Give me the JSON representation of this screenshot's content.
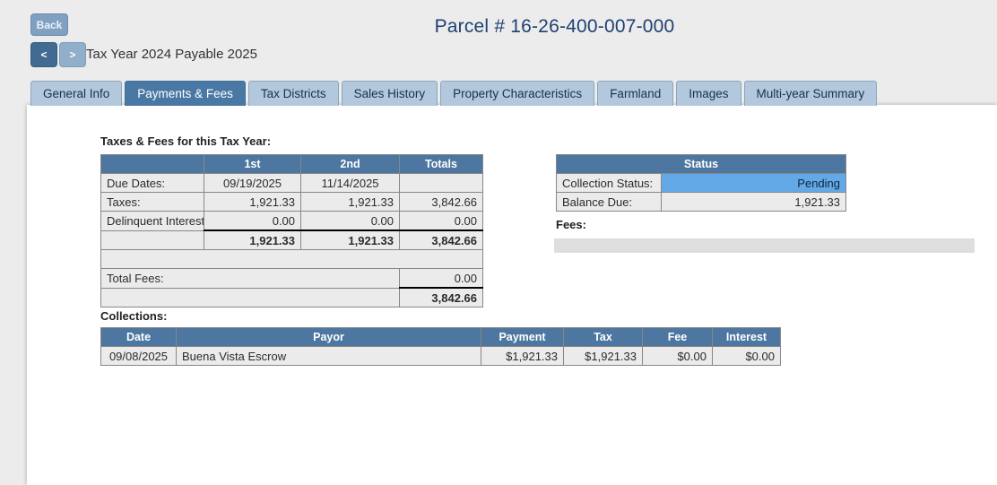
{
  "colors": {
    "page_background": "#ececec",
    "panel_background": "#ffffff",
    "table_header_blue": "#4d77a0",
    "active_tab_blue": "#4a78a4",
    "inactive_tab_blue": "#b3c8dd",
    "pending_highlight_blue": "#63a9e7",
    "title_navy": "#1f4070",
    "cell_gray": "#ebebeb"
  },
  "header": {
    "back_label": "Back",
    "title": "Parcel # 16-26-400-007-000",
    "prev_label": "<",
    "next_label": ">",
    "tax_year_label": "Tax Year 2024 Payable 2025"
  },
  "tabs": [
    {
      "label": "General Info",
      "active": false
    },
    {
      "label": "Payments & Fees",
      "active": true
    },
    {
      "label": "Tax Districts",
      "active": false
    },
    {
      "label": "Sales History",
      "active": false
    },
    {
      "label": "Property Characteristics",
      "active": false
    },
    {
      "label": "Farmland",
      "active": false
    },
    {
      "label": "Images",
      "active": false
    },
    {
      "label": "Multi-year Summary",
      "active": false
    }
  ],
  "taxes_fees": {
    "section_title": "Taxes & Fees for this Tax Year:",
    "columns": [
      "",
      "1st",
      "2nd",
      "Totals"
    ],
    "rows": [
      {
        "label": "Due Dates:",
        "first": "09/19/2025",
        "second": "11/14/2025",
        "totals": ""
      },
      {
        "label": "Taxes:",
        "first": "1,921.33",
        "second": "1,921.33",
        "totals": "3,842.66"
      },
      {
        "label": "Delinquent Interest:",
        "first": "0.00",
        "second": "0.00",
        "totals": "0.00"
      },
      {
        "label": "",
        "first": "1,921.33",
        "second": "1,921.33",
        "totals": "3,842.66"
      }
    ],
    "total_fees_label": "Total Fees:",
    "total_fees_value": "0.00",
    "grand_total": "3,842.66"
  },
  "status": {
    "header": "Status",
    "rows": [
      {
        "label": "Collection Status:",
        "value": "Pending"
      },
      {
        "label": "Balance Due:",
        "value": "1,921.33"
      }
    ]
  },
  "fees": {
    "section_title": "Fees:"
  },
  "collections": {
    "section_title": "Collections:",
    "columns": [
      "Date",
      "Payor",
      "Payment",
      "Tax",
      "Fee",
      "Interest"
    ],
    "rows": [
      {
        "date": "09/08/2025",
        "payor": "Buena Vista Escrow",
        "payment": "$1,921.33",
        "tax": "$1,921.33",
        "fee": "$0.00",
        "interest": "$0.00"
      }
    ]
  }
}
